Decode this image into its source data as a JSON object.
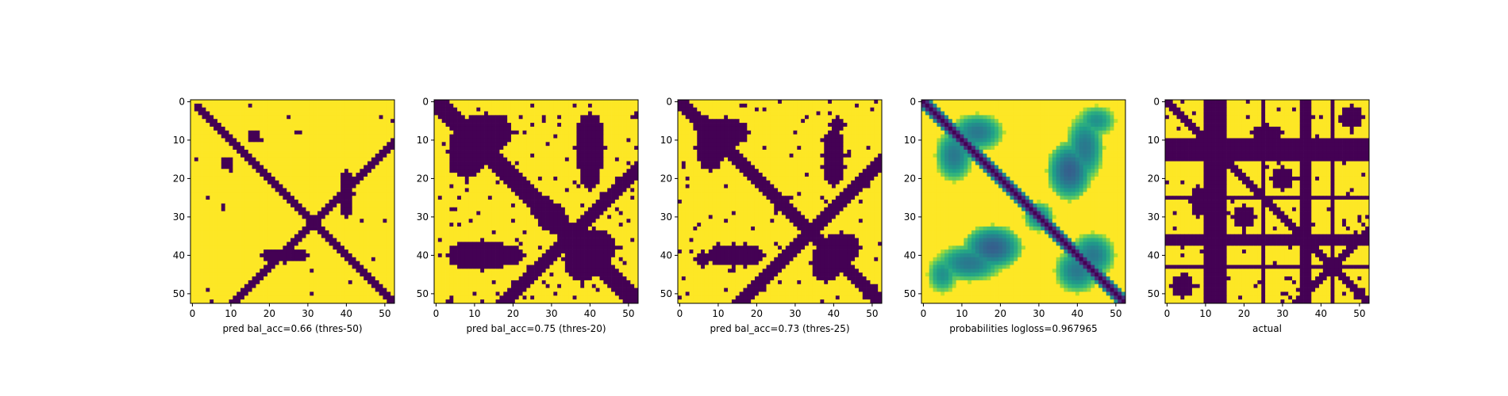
{
  "chart_data": [
    {
      "type": "heatmap",
      "title": "",
      "xlabel": "pred bal_acc=0.66 (thres-50)",
      "ylabel": "",
      "xlim": [
        0,
        52
      ],
      "ylim": [
        52,
        0
      ],
      "xticks": [
        "0",
        "10",
        "20",
        "30",
        "40",
        "50"
      ],
      "yticks": [
        "0",
        "10",
        "20",
        "30",
        "40",
        "50"
      ],
      "matrix_size": 53,
      "value_scale": "binary",
      "colors": {
        "low": "#440154",
        "high": "#fde725"
      },
      "bands": [
        {
          "type": "diag",
          "offset": 0,
          "width": 1.5,
          "from": 1,
          "to": 52
        },
        {
          "type": "anti",
          "sum": 63,
          "width": 1.3,
          "from": 15,
          "to": 52
        },
        {
          "type": "anti",
          "sum": 24,
          "width": 1.2,
          "from": 0,
          "to": 10
        }
      ],
      "blobs": [
        {
          "r": 24,
          "c": 40,
          "rx": 2,
          "ry": 6,
          "v": 0
        },
        {
          "r": 40,
          "c": 22,
          "rx": 4,
          "ry": 1.5,
          "v": 0
        },
        {
          "r": 9,
          "c": 16,
          "rx": 1.5,
          "ry": 1.5,
          "v": 0
        }
      ],
      "noise": {
        "seed": 11,
        "density": 0.01
      }
    },
    {
      "type": "heatmap",
      "title": "",
      "xlabel": "pred bal_acc=0.75 (thres-20)",
      "ylabel": "",
      "xlim": [
        0,
        52
      ],
      "ylim": [
        52,
        0
      ],
      "xticks": [
        "0",
        "10",
        "20",
        "30",
        "40",
        "50"
      ],
      "yticks": [
        "0",
        "10",
        "20",
        "30",
        "40",
        "50"
      ],
      "matrix_size": 53,
      "value_scale": "binary",
      "colors": {
        "low": "#440154",
        "high": "#fde725"
      },
      "bands": [
        {
          "type": "diag",
          "offset": 0,
          "width": 3,
          "from": 0,
          "to": 52
        },
        {
          "type": "anti",
          "sum": 70,
          "width": 2.5,
          "from": 28,
          "to": 52
        }
      ],
      "blobs": [
        {
          "r": 8,
          "c": 13,
          "rx": 7,
          "ry": 5,
          "v": 0
        },
        {
          "r": 40,
          "c": 12,
          "rx": 9,
          "ry": 4,
          "v": 0
        },
        {
          "r": 17,
          "c": 40,
          "rx": 3,
          "ry": 6,
          "v": 0
        },
        {
          "r": 41,
          "c": 38,
          "rx": 5,
          "ry": 6,
          "v": 0
        },
        {
          "r": 6,
          "c": 40,
          "rx": 3,
          "ry": 3,
          "v": 0
        },
        {
          "r": 30,
          "c": 30,
          "rx": 4,
          "ry": 4,
          "v": 0
        }
      ],
      "noise": {
        "seed": 23,
        "density": 0.04
      }
    },
    {
      "type": "heatmap",
      "title": "",
      "xlabel": "pred bal_acc=0.73 (thres-25)",
      "ylabel": "",
      "xlim": [
        0,
        52
      ],
      "ylim": [
        52,
        0
      ],
      "xticks": [
        "0",
        "10",
        "20",
        "30",
        "40",
        "50"
      ],
      "yticks": [
        "0",
        "10",
        "20",
        "30",
        "40",
        "50"
      ],
      "matrix_size": 53,
      "value_scale": "binary",
      "colors": {
        "low": "#440154",
        "high": "#fde725"
      },
      "bands": [
        {
          "type": "diag",
          "offset": 0,
          "width": 2.5,
          "from": 0,
          "to": 52
        },
        {
          "type": "anti",
          "sum": 68,
          "width": 2,
          "from": 26,
          "to": 52
        }
      ],
      "blobs": [
        {
          "r": 8,
          "c": 12,
          "rx": 6,
          "ry": 4,
          "v": 0
        },
        {
          "r": 40,
          "c": 14,
          "rx": 7,
          "ry": 3,
          "v": 0
        },
        {
          "r": 17,
          "c": 40,
          "rx": 3,
          "ry": 5,
          "v": 0
        },
        {
          "r": 42,
          "c": 38,
          "rx": 4,
          "ry": 5,
          "v": 0
        },
        {
          "r": 6,
          "c": 41,
          "rx": 2,
          "ry": 2,
          "v": 0
        }
      ],
      "noise": {
        "seed": 37,
        "density": 0.03
      }
    },
    {
      "type": "heatmap",
      "title": "",
      "xlabel": "probabilities logloss=0.967965",
      "ylabel": "",
      "xlim": [
        0,
        52
      ],
      "ylim": [
        52,
        0
      ],
      "xticks": [
        "0",
        "10",
        "20",
        "30",
        "40",
        "50"
      ],
      "yticks": [
        "0",
        "10",
        "20",
        "30",
        "40",
        "50"
      ],
      "matrix_size": 53,
      "value_scale": "continuous",
      "colors": {
        "low": "#440154",
        "high": "#fde725"
      },
      "bands": [
        {
          "type": "diag",
          "offset": 0,
          "width": 1.8,
          "from": 0,
          "to": 52
        }
      ],
      "blobs": [
        {
          "r": 8,
          "c": 14,
          "rx": 7,
          "ry": 5,
          "v": 0.4
        },
        {
          "r": 42,
          "c": 12,
          "rx": 9,
          "ry": 5,
          "v": 0.4
        },
        {
          "r": 18,
          "c": 38,
          "rx": 6,
          "ry": 8,
          "v": 0.3
        },
        {
          "r": 44,
          "c": 40,
          "rx": 6,
          "ry": 6,
          "v": 0.4
        },
        {
          "r": 5,
          "c": 45,
          "rx": 5,
          "ry": 4,
          "v": 0.5
        },
        {
          "r": 30,
          "c": 30,
          "rx": 4,
          "ry": 4,
          "v": 0.45
        }
      ],
      "noise": {
        "seed": 53,
        "density": 0
      }
    },
    {
      "type": "heatmap",
      "title": "",
      "xlabel": "actual",
      "ylabel": "",
      "xlim": [
        0,
        52
      ],
      "ylim": [
        52,
        0
      ],
      "xticks": [
        "0",
        "10",
        "20",
        "30",
        "40",
        "50"
      ],
      "yticks": [
        "0",
        "10",
        "20",
        "30",
        "40",
        "50"
      ],
      "matrix_size": 53,
      "value_scale": "binary",
      "colors": {
        "low": "#440154",
        "high": "#fde725"
      },
      "dark_rows": [
        10,
        11,
        12,
        13,
        14,
        15,
        25,
        35,
        36,
        37,
        43
      ],
      "dark_cols": [
        10,
        11,
        12,
        13,
        14,
        15,
        25,
        35,
        36,
        37,
        43
      ],
      "bands": [
        {
          "type": "diag",
          "offset": 0,
          "width": 1.2,
          "from": 0,
          "to": 52
        },
        {
          "type": "anti",
          "sum": 86,
          "width": 1,
          "from": 36,
          "to": 52
        }
      ],
      "blobs": [
        {
          "r": 8,
          "c": 26,
          "rx": 4,
          "ry": 2,
          "v": 0
        },
        {
          "r": 30,
          "c": 20,
          "rx": 3,
          "ry": 3,
          "v": 0
        },
        {
          "r": 48,
          "c": 4,
          "rx": 3,
          "ry": 3,
          "v": 0
        }
      ],
      "noise": {
        "seed": 71,
        "density": 0.04
      }
    }
  ]
}
